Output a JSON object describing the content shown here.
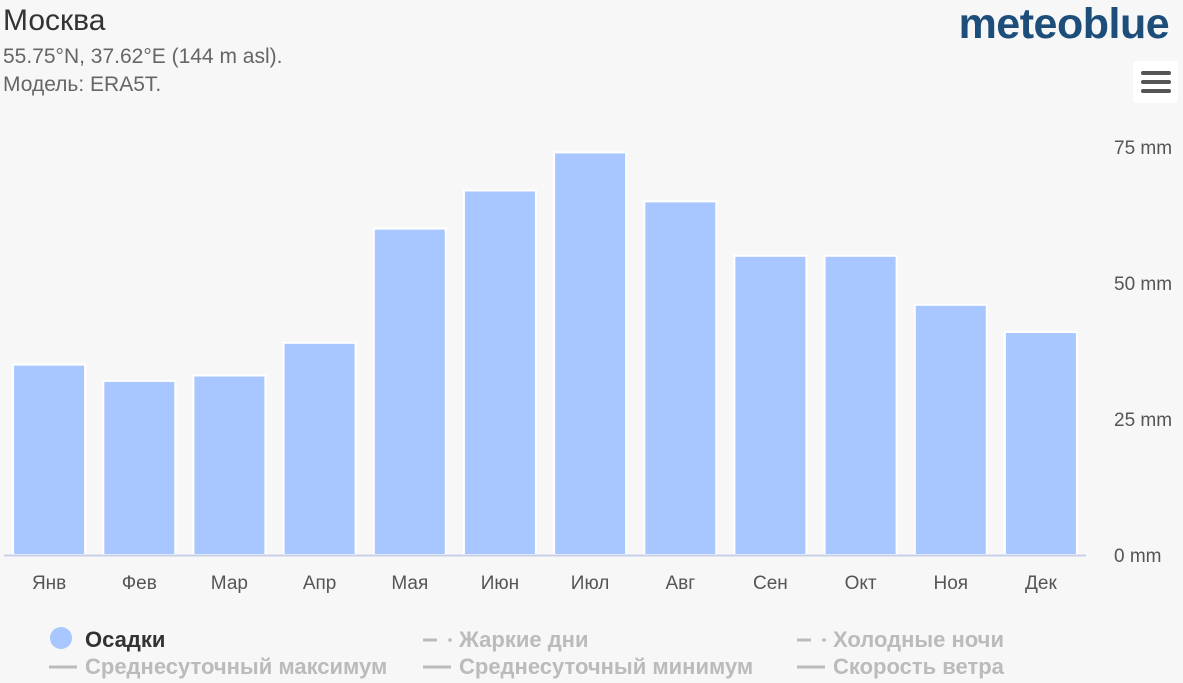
{
  "header": {
    "title": "Москва",
    "coords": "55.75°N, 37.62°E (144 m asl).",
    "model": "Модель: ERA5T."
  },
  "brand": {
    "name": "meteoblue",
    "mark": "®",
    "color": "#1d4e7a"
  },
  "menu": {
    "icon": "hamburger-menu-icon"
  },
  "colors": {
    "bar": "#a8c6ff",
    "axis": "#c8d0e8",
    "tick_text": "#555",
    "legend_inactive": "#bbbbbb"
  },
  "legend": [
    {
      "label": "Осадки",
      "marker": "circle",
      "active": true
    },
    {
      "label": "Жаркие дни",
      "marker": "dash-dot",
      "active": false
    },
    {
      "label": "Холодные ночи",
      "marker": "dash-dot",
      "active": false
    },
    {
      "label": "Среднесуточный максимум",
      "marker": "line",
      "active": false
    },
    {
      "label": "Среднесуточный минимум",
      "marker": "line",
      "active": false
    },
    {
      "label": "Скорость ветра",
      "marker": "line",
      "active": false
    }
  ],
  "chart_data": {
    "type": "bar",
    "categories": [
      "Янв",
      "Фев",
      "Мар",
      "Апр",
      "Мая",
      "Июн",
      "Июл",
      "Авг",
      "Сен",
      "Окт",
      "Ноя",
      "Дек"
    ],
    "series": [
      {
        "name": "Осадки",
        "values": [
          35,
          32,
          33,
          39,
          60,
          67,
          74,
          65,
          55,
          55,
          46,
          41
        ]
      }
    ],
    "ylim": [
      0,
      75
    ],
    "yticks": [
      0,
      25,
      50,
      75
    ],
    "ytick_labels": [
      "0 mm",
      "25 mm",
      "50 mm",
      "75 mm"
    ],
    "grid": false,
    "legend_position": "bottom"
  }
}
